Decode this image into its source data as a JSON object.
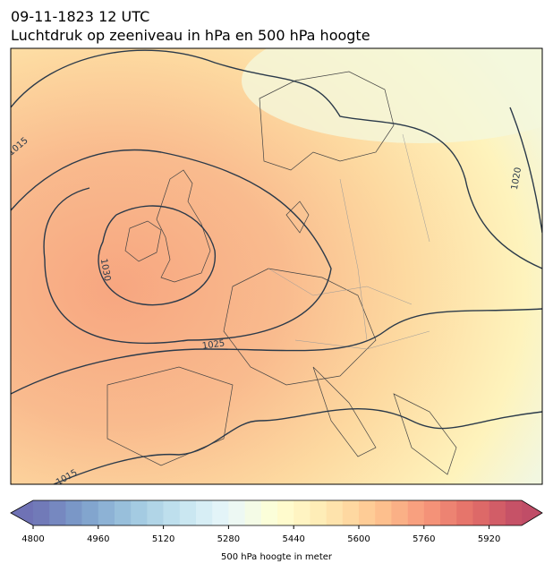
{
  "header": {
    "title": "09-11-1823 12 UTC",
    "subtitle": "Luchtdruk op zeeniveau in hPa en 500 hPa hoogte"
  },
  "map": {
    "isobar_labels": [
      1015,
      1020,
      1030,
      1025,
      1015
    ]
  },
  "colorbar": {
    "label": "500 hPa hoogte in meter",
    "colormap": "RdYlBu_r",
    "lim": [
      4800,
      6000
    ],
    "levels": [
      4800,
      4840,
      4880,
      4920,
      4960,
      5000,
      5040,
      5080,
      5120,
      5160,
      5200,
      5240,
      5280,
      5320,
      5360,
      5400,
      5440,
      5480,
      5520,
      5560,
      5600,
      5640,
      5680,
      5720,
      5760,
      5800,
      5840,
      5880,
      5920,
      5960,
      6000
    ],
    "ticks": [
      4800,
      4960,
      5120,
      5280,
      5440,
      5600,
      5760,
      5920
    ]
  }
}
